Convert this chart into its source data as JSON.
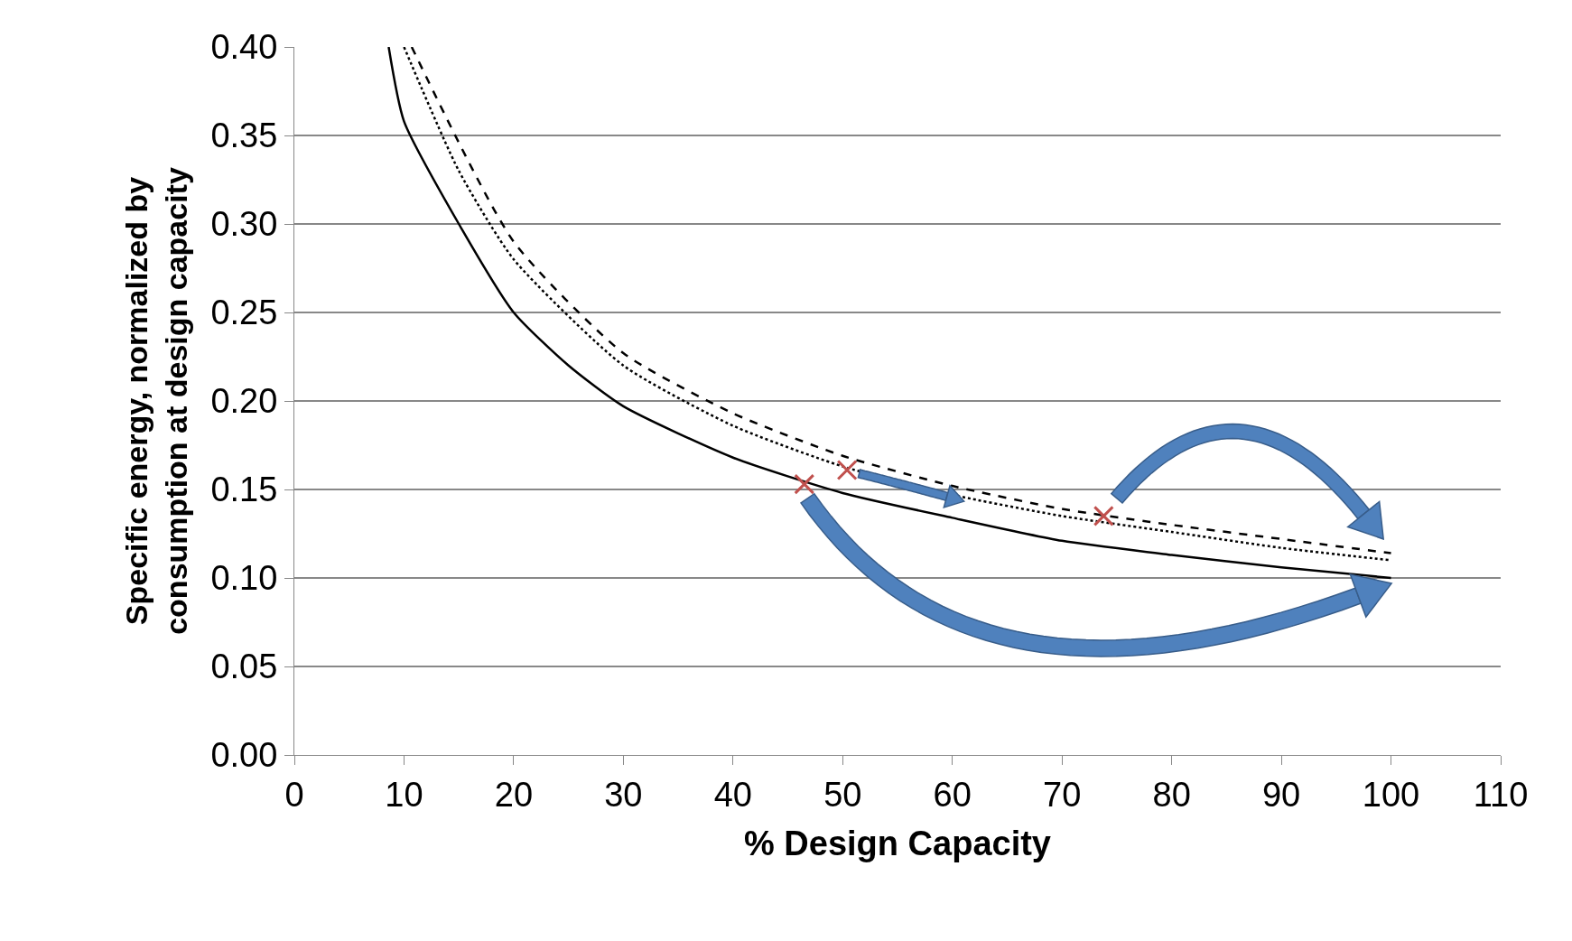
{
  "chart_data": {
    "type": "line",
    "xlabel": "% Design Capacity",
    "ylabel": "Specific energy, normalized by consumption at design capacity",
    "xlim": [
      0,
      110
    ],
    "xticks": [
      0,
      10,
      20,
      30,
      40,
      50,
      60,
      70,
      80,
      90,
      100,
      110
    ],
    "ylim": [
      0,
      0.4
    ],
    "yticks": [
      {
        "value": 0,
        "label": "0.00"
      },
      {
        "value": 0.05,
        "label": "0.05"
      },
      {
        "value": 0.1,
        "label": "0.10"
      },
      {
        "value": 0.15,
        "label": "0.15"
      },
      {
        "value": 0.2,
        "label": "0.20"
      },
      {
        "value": 0.25,
        "label": "0.25"
      },
      {
        "value": 0.3,
        "label": "0.30"
      },
      {
        "value": 0.35,
        "label": "0.35"
      },
      {
        "value": 0.4,
        "label": "0.40"
      }
    ],
    "grid": "y",
    "marker": "none",
    "series": [
      {
        "color": "#000000",
        "line_style": "solid",
        "x": [
          8.6,
          10,
          15,
          20,
          25,
          30,
          40,
          50,
          60,
          70,
          80,
          90,
          100
        ],
        "values": [
          0.4,
          0.358,
          0.3,
          0.25,
          0.22,
          0.197,
          0.168,
          0.148,
          0.134,
          0.121,
          0.113,
          0.106,
          0.1
        ]
      },
      {
        "color": "#000000",
        "line_style": "dotted",
        "x": [
          10,
          15,
          20,
          30,
          40,
          50,
          60,
          70,
          80,
          90,
          100
        ],
        "values": [
          0.4,
          0.33,
          0.28,
          0.22,
          0.186,
          0.163,
          0.147,
          0.135,
          0.126,
          0.117,
          0.11
        ]
      },
      {
        "color": "#000000",
        "line_style": "dashed",
        "x": [
          10.7,
          20,
          30,
          40,
          50,
          60,
          70,
          80,
          90,
          100
        ],
        "values": [
          0.4,
          0.29,
          0.227,
          0.193,
          0.169,
          0.152,
          0.139,
          0.13,
          0.122,
          0.114
        ]
      },
      {
        "type": "scatter",
        "marker": "cross",
        "color": "#c0504d",
        "x": [
          46.5,
          50.4,
          73.8
        ],
        "values": [
          0.153,
          0.161,
          0.135
        ]
      }
    ]
  }
}
